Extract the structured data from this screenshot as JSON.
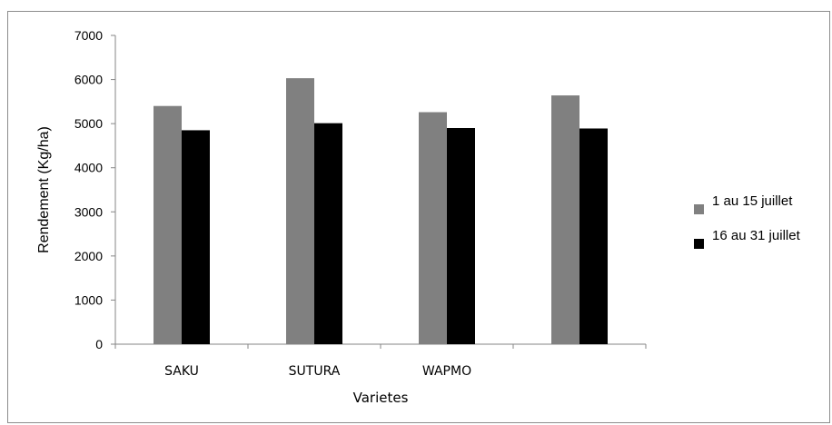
{
  "chart_data": {
    "type": "bar",
    "title": "",
    "xlabel": "Varietes",
    "ylabel": "Rendement (Kg/ha)",
    "ylim": [
      0,
      7000
    ],
    "yticks": [
      0,
      1000,
      2000,
      3000,
      4000,
      5000,
      6000,
      7000
    ],
    "categories": [
      "SAKU",
      "SUTURA",
      "WAPMO",
      ""
    ],
    "series": [
      {
        "name": "1 au 15 juillet",
        "color": "#808080",
        "values": [
          5400,
          6030,
          5260,
          5640
        ]
      },
      {
        "name": "16 au 31 juillet",
        "color": "#000000",
        "values": [
          4850,
          5010,
          4900,
          4890
        ]
      }
    ],
    "grid": false,
    "legend_position": "right"
  }
}
